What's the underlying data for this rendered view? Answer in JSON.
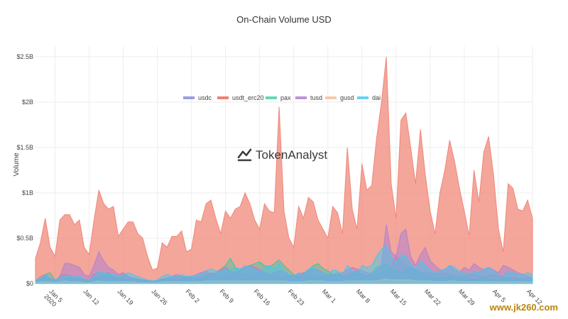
{
  "watermark": {
    "logo_text": "TokenAnalyst",
    "site_text": "www.jk260.com"
  },
  "chart_data": {
    "type": "area",
    "title": "On-Chain Volume USD",
    "xlabel": "",
    "ylabel": "Volume",
    "ylim": [
      0,
      2500000000
    ],
    "y_ticks": [
      0,
      500000000,
      1000000000,
      1500000000,
      2000000000,
      2500000000
    ],
    "y_tick_labels": [
      "$0",
      "$0.5B",
      "$1B",
      "$1.5B",
      "$2B",
      "$2.5B"
    ],
    "x_start": "2020-01-01",
    "x_end": "2020-04-12",
    "x_ticks": [
      "2020-01-05",
      "2020-01-12",
      "2020-01-19",
      "2020-01-26",
      "2020-02-02",
      "2020-02-09",
      "2020-02-16",
      "2020-02-23",
      "2020-03-01",
      "2020-03-08",
      "2020-03-15",
      "2020-03-22",
      "2020-03-29",
      "2020-04-05",
      "2020-04-12"
    ],
    "x_tick_labels": [
      "Jan 5\n2020",
      "Jan 12",
      "Jan 19",
      "Jan 26",
      "Feb 2",
      "Feb 9",
      "Feb 16",
      "Feb 23",
      "Mar 1",
      "Mar 8",
      "Mar 15",
      "Mar 22",
      "Mar 29",
      "Apr 5",
      "Apr 12"
    ],
    "grid": true,
    "legend_position": "top-center",
    "series": [
      {
        "name": "usdc",
        "color": "#7b7be0",
        "opacity": 0.45,
        "values": [
          0.02,
          0.08,
          0.1,
          0.05,
          0.03,
          0.08,
          0.1,
          0.09,
          0.07,
          0.06,
          0.05,
          0.04,
          0.1,
          0.12,
          0.1,
          0.08,
          0.07,
          0.06,
          0.1,
          0.08,
          0.06,
          0.05,
          0.04,
          0.03,
          0.02,
          0.03,
          0.05,
          0.06,
          0.05,
          0.07,
          0.08,
          0.06,
          0.05,
          0.07,
          0.08,
          0.1,
          0.12,
          0.1,
          0.08,
          0.07,
          0.09,
          0.12,
          0.11,
          0.1,
          0.09,
          0.1,
          0.12,
          0.11,
          0.1,
          0.09,
          0.08,
          0.07,
          0.08,
          0.09,
          0.1,
          0.11,
          0.09,
          0.08,
          0.07,
          0.08,
          0.09,
          0.1,
          0.09,
          0.08,
          0.1,
          0.12,
          0.11,
          0.1,
          0.09,
          0.08,
          0.1,
          0.12,
          0.14,
          0.2,
          0.3,
          0.25,
          0.2,
          0.18,
          0.15,
          0.12,
          0.13,
          0.12,
          0.1,
          0.11,
          0.12,
          0.1,
          0.09,
          0.1,
          0.08,
          0.09,
          0.1,
          0.08,
          0.07,
          0.09,
          0.1,
          0.08,
          0.07,
          0.06,
          0.07,
          0.06,
          0.05,
          0.06,
          0.05
        ]
      },
      {
        "name": "usdt_erc20",
        "color": "#f08070",
        "opacity": 0.7,
        "values": [
          0.28,
          0.45,
          0.72,
          0.4,
          0.3,
          0.7,
          0.76,
          0.76,
          0.65,
          0.7,
          0.4,
          0.32,
          0.7,
          1.03,
          0.88,
          0.82,
          0.85,
          0.52,
          0.6,
          0.68,
          0.68,
          0.55,
          0.5,
          0.3,
          0.15,
          0.17,
          0.45,
          0.4,
          0.52,
          0.52,
          0.58,
          0.35,
          0.38,
          0.7,
          0.68,
          0.88,
          0.92,
          0.72,
          0.55,
          0.8,
          0.72,
          0.82,
          0.85,
          1.0,
          0.88,
          0.7,
          0.6,
          0.88,
          0.8,
          0.78,
          1.95,
          0.8,
          0.5,
          0.4,
          0.85,
          0.72,
          0.95,
          0.9,
          0.7,
          0.6,
          0.5,
          0.85,
          0.78,
          0.55,
          1.5,
          0.82,
          0.6,
          1.32,
          1.03,
          1.08,
          1.6,
          2.0,
          2.5,
          1.1,
          0.72,
          1.8,
          1.88,
          1.5,
          1.1,
          1.7,
          1.2,
          0.8,
          0.55,
          1.0,
          1.25,
          1.58,
          1.35,
          1.05,
          0.8,
          0.53,
          1.25,
          0.9,
          1.45,
          1.62,
          1.2,
          0.6,
          0.35,
          1.1,
          1.05,
          0.82,
          0.8,
          0.92,
          0.72
        ]
      },
      {
        "name": "pax",
        "color": "#30c8a0",
        "opacity": 0.45,
        "values": [
          0.01,
          0.04,
          0.1,
          0.12,
          0.04,
          0.02,
          0.05,
          0.06,
          0.04,
          0.06,
          0.03,
          0.02,
          0.05,
          0.07,
          0.09,
          0.12,
          0.07,
          0.06,
          0.05,
          0.04,
          0.06,
          0.05,
          0.04,
          0.03,
          0.02,
          0.03,
          0.04,
          0.06,
          0.05,
          0.04,
          0.05,
          0.08,
          0.07,
          0.05,
          0.06,
          0.08,
          0.1,
          0.12,
          0.16,
          0.2,
          0.28,
          0.18,
          0.14,
          0.16,
          0.2,
          0.22,
          0.24,
          0.2,
          0.18,
          0.22,
          0.26,
          0.2,
          0.15,
          0.1,
          0.06,
          0.08,
          0.15,
          0.2,
          0.22,
          0.17,
          0.14,
          0.1,
          0.12,
          0.08,
          0.06,
          0.1,
          0.14,
          0.1,
          0.08,
          0.12,
          0.18,
          0.2,
          0.22,
          0.15,
          0.14,
          0.12,
          0.15,
          0.18,
          0.14,
          0.12,
          0.1,
          0.08,
          0.06,
          0.05,
          0.06,
          0.08,
          0.06,
          0.05,
          0.06,
          0.05,
          0.04,
          0.05,
          0.06,
          0.05,
          0.04,
          0.03,
          0.05,
          0.06,
          0.04,
          0.05,
          0.04,
          0.03,
          0.04
        ]
      },
      {
        "name": "tusd",
        "color": "#b080d0",
        "opacity": 0.55,
        "values": [
          0.02,
          0.05,
          0.08,
          0.06,
          0.03,
          0.08,
          0.22,
          0.22,
          0.2,
          0.18,
          0.1,
          0.08,
          0.2,
          0.35,
          0.25,
          0.18,
          0.15,
          0.1,
          0.12,
          0.08,
          0.06,
          0.05,
          0.04,
          0.03,
          0.02,
          0.03,
          0.05,
          0.06,
          0.08,
          0.1,
          0.08,
          0.06,
          0.08,
          0.1,
          0.12,
          0.14,
          0.1,
          0.12,
          0.15,
          0.18,
          0.14,
          0.12,
          0.15,
          0.18,
          0.2,
          0.18,
          0.15,
          0.12,
          0.1,
          0.12,
          0.14,
          0.12,
          0.1,
          0.08,
          0.1,
          0.12,
          0.14,
          0.16,
          0.15,
          0.12,
          0.1,
          0.08,
          0.1,
          0.12,
          0.15,
          0.18,
          0.16,
          0.14,
          0.12,
          0.1,
          0.14,
          0.2,
          0.65,
          0.35,
          0.3,
          0.55,
          0.6,
          0.3,
          0.2,
          0.32,
          0.4,
          0.25,
          0.2,
          0.15,
          0.15,
          0.2,
          0.15,
          0.12,
          0.18,
          0.15,
          0.22,
          0.18,
          0.15,
          0.18,
          0.15,
          0.12,
          0.2,
          0.18,
          0.15,
          0.12,
          0.1,
          0.08,
          0.06
        ]
      },
      {
        "name": "gusd",
        "color": "#f5c0a0",
        "opacity": 0.55,
        "values": [
          0.01,
          0.02,
          0.02,
          0.02,
          0.01,
          0.02,
          0.03,
          0.02,
          0.02,
          0.02,
          0.01,
          0.01,
          0.02,
          0.03,
          0.02,
          0.02,
          0.02,
          0.02,
          0.02,
          0.02,
          0.02,
          0.01,
          0.01,
          0.01,
          0.01,
          0.01,
          0.02,
          0.02,
          0.02,
          0.02,
          0.02,
          0.02,
          0.02,
          0.02,
          0.02,
          0.03,
          0.03,
          0.03,
          0.03,
          0.03,
          0.03,
          0.03,
          0.03,
          0.03,
          0.03,
          0.03,
          0.03,
          0.03,
          0.03,
          0.03,
          0.03,
          0.03,
          0.02,
          0.02,
          0.02,
          0.02,
          0.03,
          0.03,
          0.03,
          0.03,
          0.02,
          0.02,
          0.02,
          0.02,
          0.03,
          0.03,
          0.03,
          0.03,
          0.03,
          0.03,
          0.03,
          0.04,
          0.05,
          0.04,
          0.04,
          0.04,
          0.04,
          0.04,
          0.03,
          0.03,
          0.03,
          0.03,
          0.02,
          0.02,
          0.02,
          0.03,
          0.03,
          0.02,
          0.02,
          0.02,
          0.02,
          0.02,
          0.02,
          0.02,
          0.02,
          0.02,
          0.02,
          0.02,
          0.02,
          0.02,
          0.02,
          0.02,
          0.02
        ]
      },
      {
        "name": "dai",
        "color": "#40c8f0",
        "opacity": 0.5,
        "values": [
          0.04,
          0.06,
          0.09,
          0.05,
          0.03,
          0.07,
          0.08,
          0.08,
          0.07,
          0.08,
          0.05,
          0.04,
          0.08,
          0.14,
          0.12,
          0.1,
          0.1,
          0.08,
          0.1,
          0.12,
          0.1,
          0.08,
          0.06,
          0.04,
          0.03,
          0.04,
          0.08,
          0.1,
          0.08,
          0.08,
          0.1,
          0.08,
          0.08,
          0.1,
          0.1,
          0.14,
          0.16,
          0.14,
          0.12,
          0.16,
          0.14,
          0.18,
          0.16,
          0.2,
          0.18,
          0.15,
          0.12,
          0.18,
          0.2,
          0.16,
          0.22,
          0.14,
          0.1,
          0.08,
          0.12,
          0.1,
          0.16,
          0.18,
          0.14,
          0.12,
          0.1,
          0.15,
          0.14,
          0.1,
          0.2,
          0.14,
          0.12,
          0.2,
          0.18,
          0.2,
          0.3,
          0.38,
          0.42,
          0.3,
          0.22,
          0.32,
          0.3,
          0.22,
          0.16,
          0.25,
          0.2,
          0.15,
          0.12,
          0.14,
          0.16,
          0.2,
          0.18,
          0.14,
          0.12,
          0.1,
          0.14,
          0.12,
          0.16,
          0.18,
          0.14,
          0.1,
          0.08,
          0.14,
          0.12,
          0.1,
          0.1,
          0.12,
          0.1
        ]
      }
    ]
  }
}
